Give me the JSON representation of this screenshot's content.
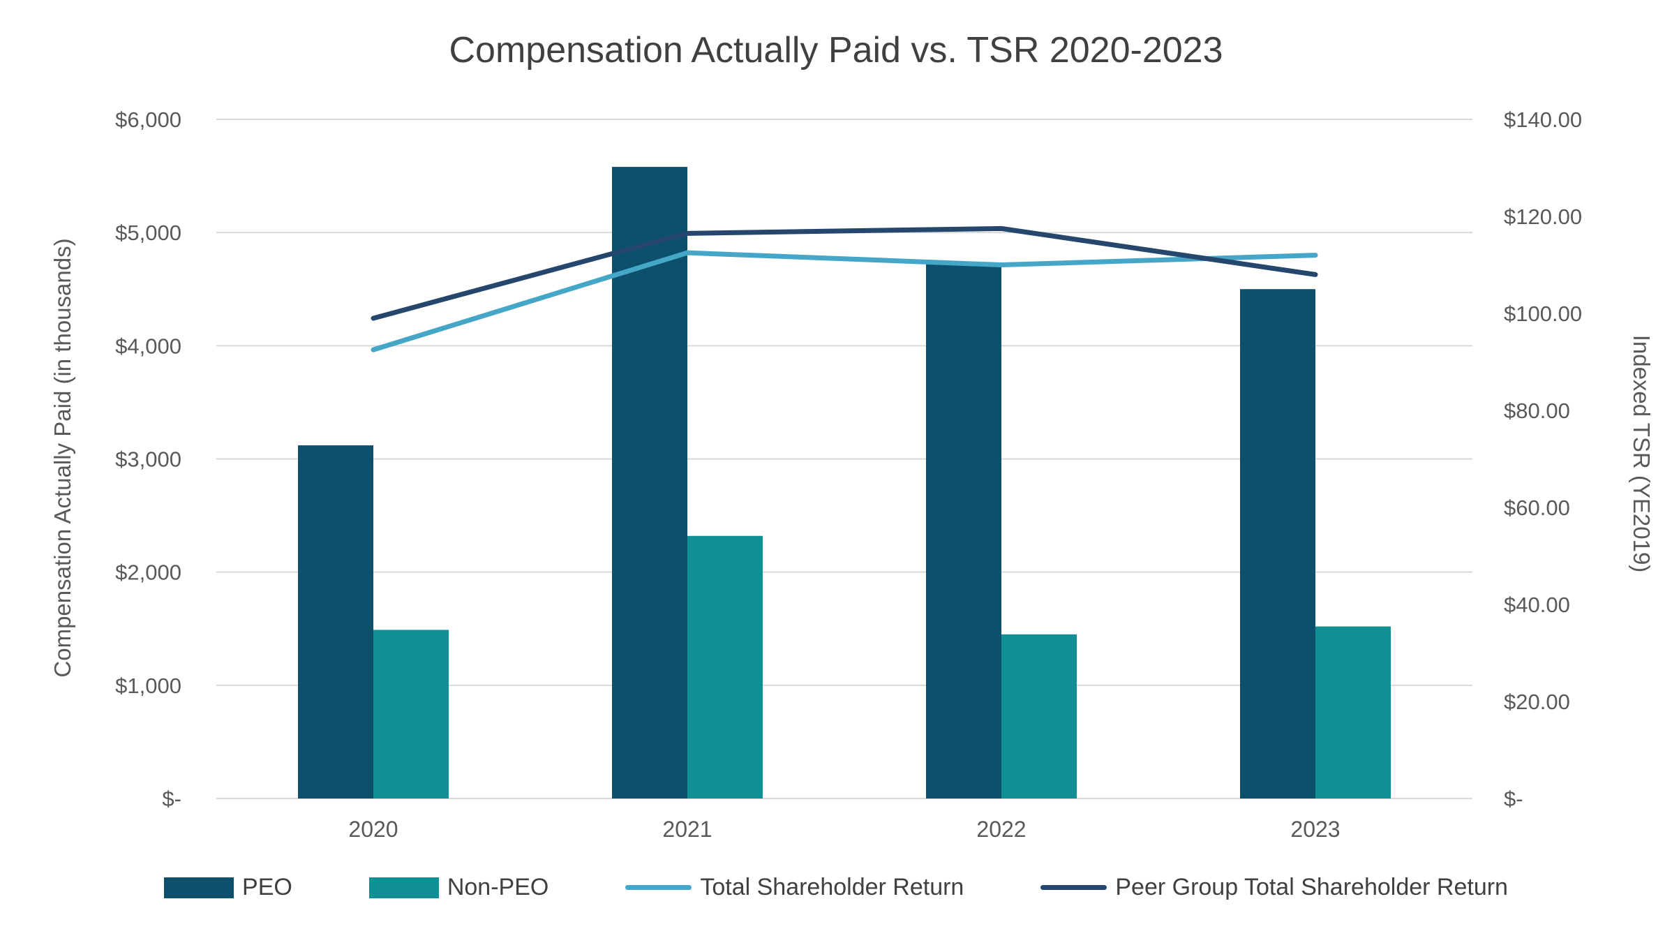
{
  "title": "Compensation Actually Paid vs. TSR 2020-2023",
  "chart_data": {
    "type": "combo",
    "subtype": "bars-plus-lines-dual-axis",
    "categories": [
      "2020",
      "2021",
      "2022",
      "2023"
    ],
    "bar_series": [
      {
        "name": "PEO",
        "axis": "left",
        "color": "#0D506C",
        "values": [
          3120,
          5580,
          4720,
          4500
        ]
      },
      {
        "name": "Non-PEO",
        "axis": "left",
        "color": "#0E9094",
        "values": [
          1490,
          2320,
          1450,
          1520
        ]
      }
    ],
    "line_series": [
      {
        "name": "Total Shareholder Return",
        "axis": "right",
        "color": "#45A6C8",
        "values": [
          92.5,
          112.5,
          110.0,
          112.0
        ]
      },
      {
        "name": "Peer Group Total Shareholder Return",
        "axis": "right",
        "color": "#25476D",
        "values": [
          99.0,
          116.5,
          117.5,
          108.0
        ]
      }
    ],
    "axes": {
      "left": {
        "title": "Compensation Actually Paid (in thousands)",
        "min": 0,
        "max": 6000,
        "tick_labels": [
          "$6,000",
          "$5,000",
          "$4,000",
          "$3,000",
          "$2,000",
          "$1,000",
          "$-"
        ],
        "tick_values": [
          6000,
          5000,
          4000,
          3000,
          2000,
          1000,
          0
        ]
      },
      "right": {
        "title": "Indexed TSR (YE2019)",
        "min": 0,
        "max": 140,
        "tick_labels": [
          "$140.00",
          "$120.00",
          "$100.00",
          "$80.00",
          "$60.00",
          "$40.00",
          "$20.00",
          "$-"
        ],
        "tick_values": [
          140,
          120,
          100,
          80,
          60,
          40,
          20,
          0
        ]
      }
    },
    "grid": "horizontal",
    "legend_position": "bottom"
  },
  "colors": {
    "title_text": "#404040",
    "axis_text": "#595959",
    "gridline": "#D9D9D9",
    "background": "#FFFFFF"
  }
}
